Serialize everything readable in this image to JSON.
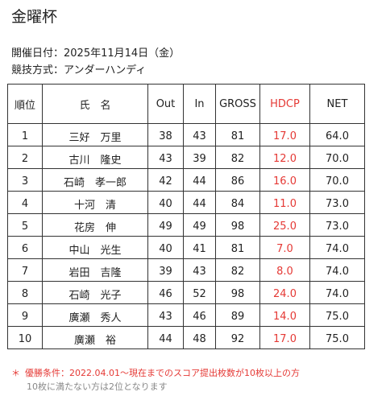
{
  "title": "金曜杯",
  "event_date": "開催日付：2025年11月14日（金）",
  "competition_method": "競技方式：アンダーハンディ",
  "table": {
    "headers": {
      "rank": "順位",
      "name": "氏　名",
      "out": "Out",
      "in": "In",
      "gross": "GROSS",
      "hdcp": "HDCP",
      "net": "NET"
    },
    "rows": [
      {
        "rank": "1",
        "name": "三好　万里",
        "out": "38",
        "in": "43",
        "gross": "81",
        "hdcp": "17.0",
        "net": "64.0"
      },
      {
        "rank": "2",
        "name": "古川　隆史",
        "out": "43",
        "in": "39",
        "gross": "82",
        "hdcp": "12.0",
        "net": "70.0"
      },
      {
        "rank": "3",
        "name": "石崎　孝一郎",
        "out": "42",
        "in": "44",
        "gross": "86",
        "hdcp": "16.0",
        "net": "70.0"
      },
      {
        "rank": "4",
        "name": "十河　清",
        "out": "40",
        "in": "44",
        "gross": "84",
        "hdcp": "11.0",
        "net": "73.0"
      },
      {
        "rank": "5",
        "name": "花房　伸",
        "out": "49",
        "in": "49",
        "gross": "98",
        "hdcp": "25.0",
        "net": "73.0"
      },
      {
        "rank": "6",
        "name": "中山　光生",
        "out": "40",
        "in": "41",
        "gross": "81",
        "hdcp": "7.0",
        "net": "74.0"
      },
      {
        "rank": "7",
        "name": "岩田　吉隆",
        "out": "39",
        "in": "43",
        "gross": "82",
        "hdcp": "8.0",
        "net": "74.0"
      },
      {
        "rank": "8",
        "name": "石崎　光子",
        "out": "46",
        "in": "52",
        "gross": "98",
        "hdcp": "24.0",
        "net": "74.0"
      },
      {
        "rank": "9",
        "name": "廣瀬　秀人",
        "out": "43",
        "in": "46",
        "gross": "89",
        "hdcp": "14.0",
        "net": "75.0"
      },
      {
        "rank": "10",
        "name": "廣瀬　裕",
        "out": "44",
        "in": "48",
        "gross": "92",
        "hdcp": "17.0",
        "net": "75.0"
      }
    ]
  },
  "note": {
    "mark": "＊",
    "text": "優勝条件：2022.04.01～現在までのスコア提出枚数が10枚以上の方",
    "sub": "10枚に満たない方は2位となります"
  },
  "colors": {
    "hdcp": "#e53935",
    "sub_note": "#888888"
  }
}
